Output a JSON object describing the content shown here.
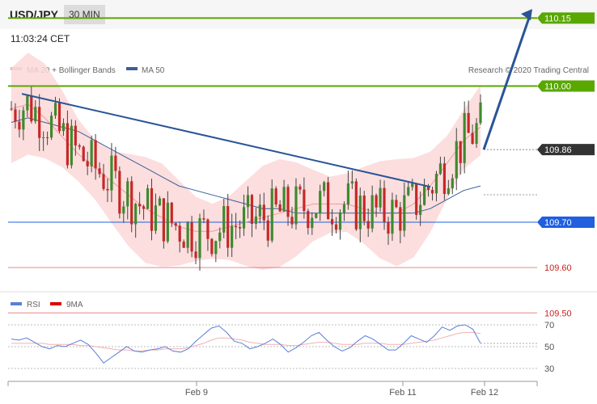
{
  "header": {
    "symbol": "USD/JPY",
    "timeframe": "30 MIN",
    "time": "11:03:24 CET"
  },
  "legend": {
    "ma20_label": "MA 20 + Bollinger Bands",
    "ma50_label": "MA 50",
    "credit": "Research © 2020 Trading Central"
  },
  "rsi_legend": {
    "rsi_label": "RSI",
    "ma_label": "9MA"
  },
  "colors": {
    "green": "#5aa700",
    "blue": "#1f5fe0",
    "red": "#e05555",
    "current": "#333333",
    "ma50": "#3a5f9a",
    "band": "#fcd8d8",
    "arrow": "#2a5496"
  },
  "chart_data": [
    {
      "type": "line",
      "title": "USD/JPY 30 MIN",
      "x_tick_labels": [
        "Feb 9",
        "Feb 11",
        "Feb 12"
      ],
      "ylim": [
        109.48,
        110.18
      ],
      "levels": [
        {
          "value": 110.15,
          "label": "110.15",
          "kind": "resistance"
        },
        {
          "value": 110.0,
          "label": "110.00",
          "kind": "resistance"
        },
        {
          "value": 109.86,
          "label": "109.86",
          "kind": "current"
        },
        {
          "value": 109.7,
          "label": "109.70",
          "kind": "support"
        },
        {
          "value": 109.6,
          "label": "109.60",
          "kind": "target"
        },
        {
          "value": 109.5,
          "label": "109.50",
          "kind": "target"
        }
      ],
      "series": [
        {
          "name": "MA 20 + Bollinger Bands",
          "values": [
            109.95,
            109.96,
            109.93,
            109.89,
            109.85,
            109.82,
            109.79,
            109.76,
            109.73,
            109.71,
            109.69,
            109.68,
            109.68,
            109.69,
            109.7,
            109.71,
            109.72,
            109.73,
            109.74,
            109.74,
            109.74,
            109.73,
            109.72,
            109.72,
            109.74,
            109.78,
            109.83,
            109.88,
            109.91
          ]
        },
        {
          "name": "MA 50",
          "values": [
            109.92,
            109.93,
            109.92,
            109.91,
            109.9,
            109.88,
            109.86,
            109.84,
            109.82,
            109.8,
            109.78,
            109.77,
            109.76,
            109.75,
            109.74,
            109.73,
            109.73,
            109.72,
            109.72,
            109.72,
            109.72,
            109.72,
            109.72,
            109.72,
            109.72,
            109.73,
            109.75,
            109.77,
            109.78
          ]
        }
      ],
      "trendline": {
        "from": 109.983,
        "to": 109.778,
        "label": "descending trendline"
      },
      "forecast_arrow": {
        "from": 109.86,
        "to": 110.17,
        "direction": "up"
      }
    },
    {
      "type": "line",
      "title": "RSI",
      "ylim": [
        20,
        80
      ],
      "y_ticks": [
        "70",
        "50",
        "30"
      ],
      "series": [
        {
          "name": "RSI",
          "values": [
            57,
            56,
            58,
            54,
            50,
            48,
            51,
            50,
            53,
            56,
            52,
            44,
            35,
            40,
            45,
            50,
            46,
            45,
            47,
            48,
            50,
            46,
            45,
            48,
            55,
            61,
            67,
            69,
            63,
            55,
            53,
            48,
            50,
            53,
            57,
            52,
            45,
            49,
            54,
            60,
            63,
            56,
            50,
            46,
            49,
            55,
            60,
            57,
            52,
            47,
            47,
            53,
            60,
            57,
            54,
            60,
            68,
            65,
            69,
            70,
            66,
            53
          ]
        },
        {
          "name": "9MA",
          "values": [
            53,
            53,
            53,
            53,
            53,
            52,
            52,
            52,
            52,
            51,
            51,
            50,
            49,
            48,
            47,
            47,
            46,
            46,
            47,
            47,
            48,
            48,
            48,
            49,
            51,
            53,
            56,
            58,
            58,
            57,
            56,
            54,
            53,
            52,
            52,
            52,
            51,
            51,
            52,
            53,
            54,
            54,
            53,
            52,
            52,
            52,
            53,
            53,
            53,
            52,
            52,
            52,
            53,
            54,
            55,
            56,
            58,
            60,
            62,
            63,
            63,
            62
          ]
        }
      ]
    }
  ]
}
